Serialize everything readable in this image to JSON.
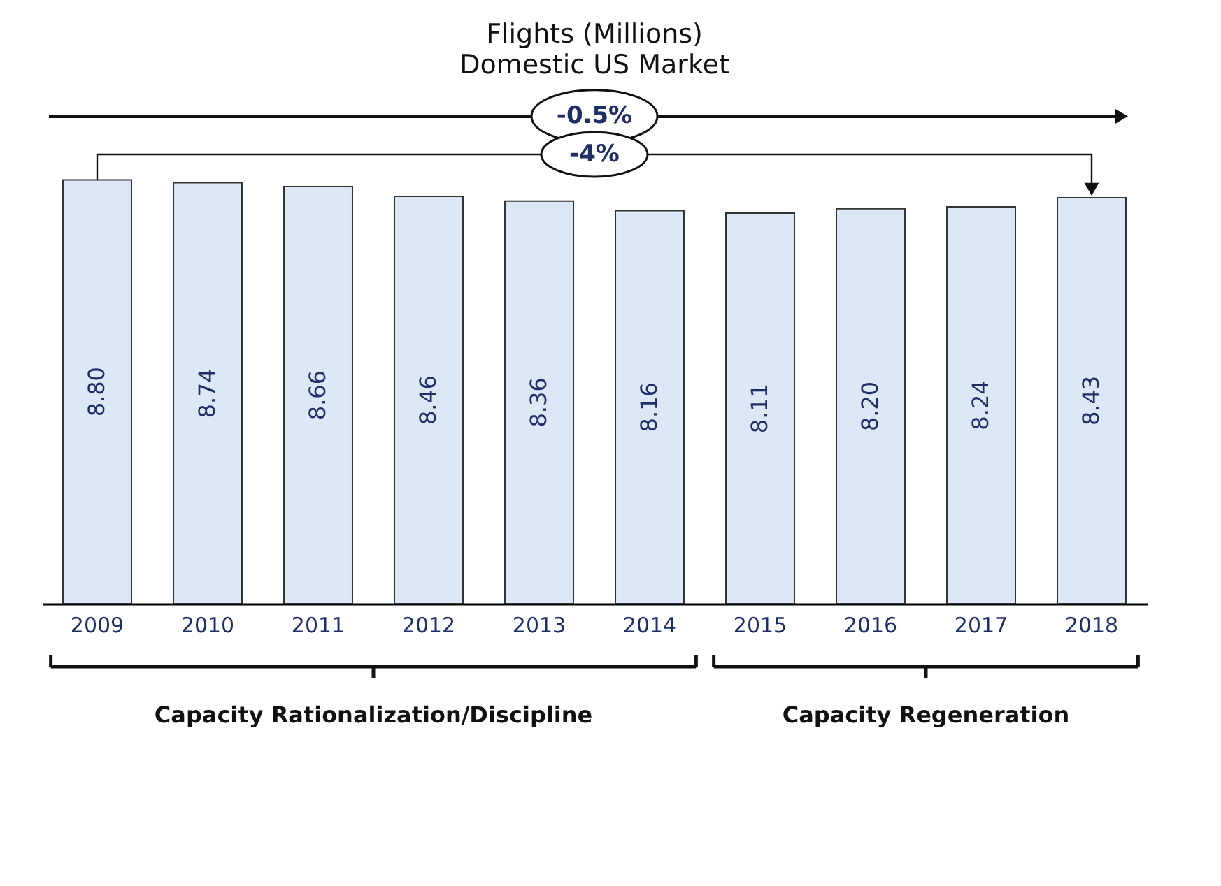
{
  "chart_data": {
    "type": "bar",
    "title": "Flights (Millions)",
    "subtitle": "Domestic US Market",
    "categories": [
      "2009",
      "2010",
      "2011",
      "2012",
      "2013",
      "2014",
      "2015",
      "2016",
      "2017",
      "2018"
    ],
    "values": [
      8.8,
      8.74,
      8.66,
      8.46,
      8.36,
      8.16,
      8.11,
      8.2,
      8.24,
      8.43
    ],
    "value_labels": [
      "8.80",
      "8.74",
      "8.66",
      "8.46",
      "8.36",
      "8.16",
      "8.11",
      "8.20",
      "8.24",
      "8.43"
    ],
    "color": "#dde8f7",
    "tick_labels": "x",
    "grid": false,
    "annotations": [
      "-0.5%",
      "-4%",
      "Capacity Rationalization/Discipline",
      "Capacity Regeneration"
    ]
  }
}
